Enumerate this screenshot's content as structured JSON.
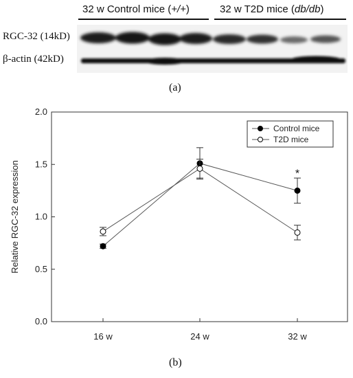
{
  "blot": {
    "group_control": "32 w Control mice (",
    "group_control_genotype": "+/+",
    "group_control_close": ")",
    "group_t2d": "32 w T2D mice (",
    "group_t2d_genotype": "db/db",
    "group_t2d_close": ")",
    "row_rgc32": "RGC-32 (14kD)",
    "row_actin": "β-actin (42kD)"
  },
  "panel_a_label": "(a)",
  "panel_b_label": "(b)",
  "chart_data": {
    "type": "line",
    "categories": [
      "16 w",
      "24 w",
      "32 w"
    ],
    "ylabel": "Relative RGC-32 expression",
    "xlabel": "",
    "ylim": [
      0,
      2.0
    ],
    "yticks": [
      "0.0",
      "0.5",
      "1.0",
      "1.5",
      "2.0"
    ],
    "legend_position": "top-right",
    "grid": false,
    "series": [
      {
        "name": "Control mice",
        "marker": "filled-circle",
        "values": [
          0.72,
          1.51,
          1.25
        ],
        "errors": [
          0.02,
          0.15,
          0.12
        ]
      },
      {
        "name": "T2D mice",
        "marker": "open-circle",
        "values": [
          0.86,
          1.46,
          0.85
        ],
        "errors": [
          0.04,
          0.09,
          0.07
        ]
      }
    ],
    "annotations": [
      {
        "text": "*",
        "category": "32 w",
        "y": 1.42
      }
    ]
  }
}
